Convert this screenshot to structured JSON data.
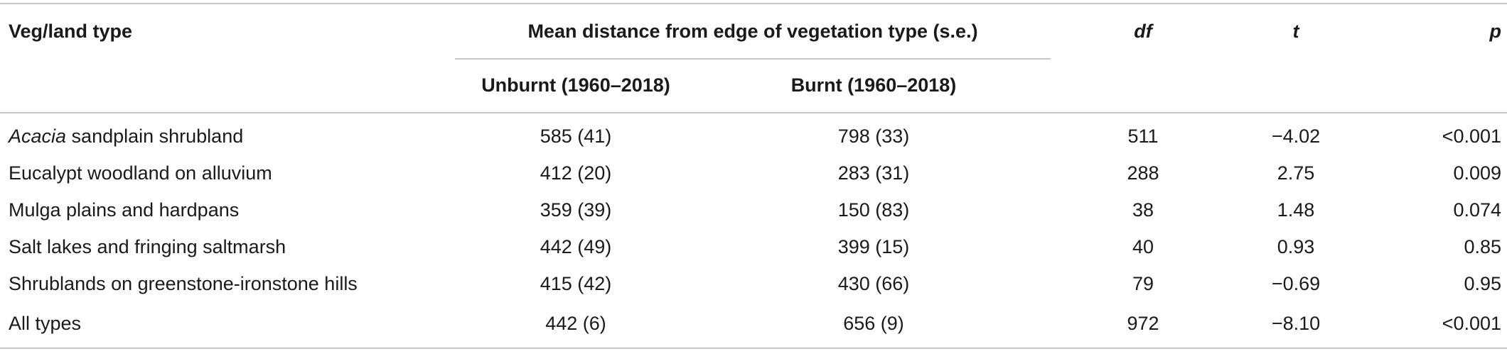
{
  "headers": {
    "veg": "Veg/land type",
    "group": "Mean distance from edge of vegetation type (s.e.)",
    "unburnt": "Unburnt (1960–2018)",
    "burnt": "Burnt (1960–2018)",
    "df": "df",
    "t": "t",
    "p": "p"
  },
  "rows": [
    {
      "veg_italic": "Acacia",
      "veg": " sandplain shrubland",
      "unburnt": "585 (41)",
      "burnt": "798 (33)",
      "df": "511",
      "t": "−4.02",
      "p": "<0.001"
    },
    {
      "veg_italic": "",
      "veg": "Eucalypt woodland on alluvium",
      "unburnt": "412 (20)",
      "burnt": "283 (31)",
      "df": "288",
      "t": "2.75",
      "p": "0.009"
    },
    {
      "veg_italic": "",
      "veg": "Mulga plains and hardpans",
      "unburnt": "359 (39)",
      "burnt": "150 (83)",
      "df": "38",
      "t": "1.48",
      "p": "0.074"
    },
    {
      "veg_italic": "",
      "veg": "Salt lakes and fringing saltmarsh",
      "unburnt": "442 (49)",
      "burnt": "399 (15)",
      "df": "40",
      "t": "0.93",
      "p": "0.85"
    },
    {
      "veg_italic": "",
      "veg": "Shrublands on greenstone-ironstone hills",
      "unburnt": "415 (42)",
      "burnt": "430 (66)",
      "df": "79",
      "t": "−0.69",
      "p": "0.95"
    },
    {
      "veg_italic": "",
      "veg": "All types",
      "unburnt": "442 (6)",
      "burnt": "656 (9)",
      "df": "972",
      "t": "−8.10",
      "p": "<0.001"
    }
  ]
}
